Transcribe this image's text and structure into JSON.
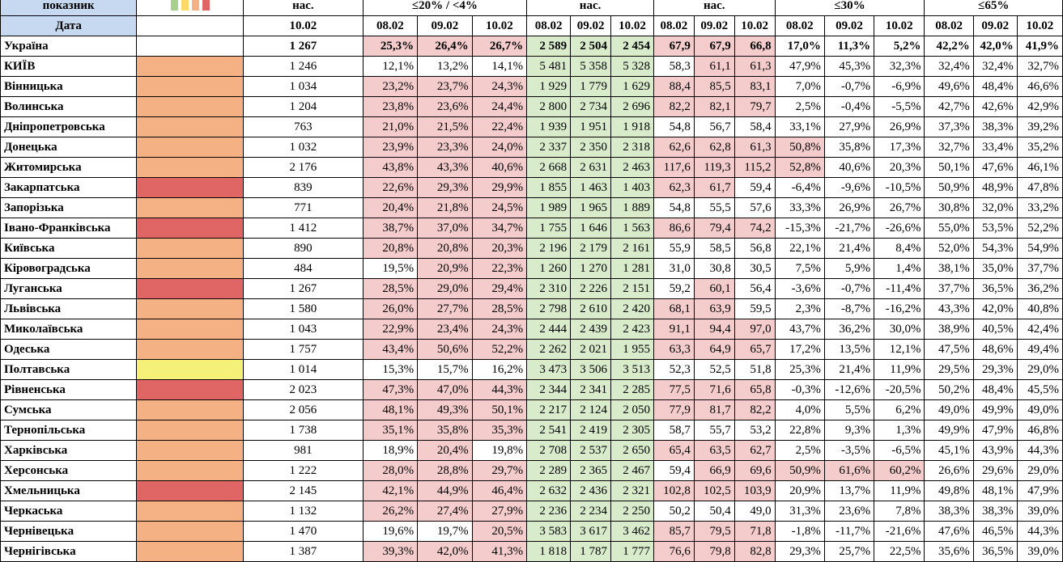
{
  "header": {
    "row1": {
      "label": "показник",
      "naselennya": "нас.",
      "group_positive_rate": "≤20% / <4%",
      "group_tests": "нас.",
      "group_hosp": "нас.",
      "group_change": "≤30%",
      "group_vacc": "≤65%"
    },
    "row2": {
      "label": "Дата",
      "date_single": "10.02",
      "d1": "08.02",
      "d2": "09.02",
      "d3": "10.02"
    },
    "legend_colors": [
      "#a9d18e",
      "#ffd966",
      "#f4b183",
      "#e06666"
    ]
  },
  "colors": {
    "orange": "#f4b183",
    "red": "#e06666",
    "yellow": "#f5f078",
    "pink_bg": "#f4cccc",
    "green_bg": "#d8eccc"
  },
  "rows": [
    {
      "name": "Україна",
      "zone": "",
      "pop": "1 267",
      "pr": [
        "25,3%",
        "26,4%",
        "26,7%"
      ],
      "t": [
        "2 589",
        "2 504",
        "2 454"
      ],
      "h": [
        "67,9",
        "67,9",
        "66,8"
      ],
      "ch": [
        "17,0%",
        "11,3%",
        "5,2%"
      ],
      "v": [
        "42,2%",
        "42,0%",
        "41,9%"
      ]
    },
    {
      "name": "КИЇВ",
      "zone": "orange",
      "pop": "1 246",
      "pr": [
        "12,1%",
        "13,2%",
        "14,1%"
      ],
      "t": [
        "5 481",
        "5 358",
        "5 328"
      ],
      "h": [
        "58,3",
        "61,1",
        "61,3"
      ],
      "ch": [
        "47,9%",
        "45,3%",
        "32,3%"
      ],
      "v": [
        "32,4%",
        "32,4%",
        "32,7%"
      ]
    },
    {
      "name": "Вінницька",
      "zone": "orange",
      "pop": "1 034",
      "pr": [
        "23,2%",
        "23,7%",
        "24,3%"
      ],
      "t": [
        "1 929",
        "1 779",
        "1 629"
      ],
      "h": [
        "88,4",
        "85,5",
        "83,1"
      ],
      "ch": [
        "7,0%",
        "-0,7%",
        "-6,9%"
      ],
      "v": [
        "49,6%",
        "48,4%",
        "46,6%"
      ]
    },
    {
      "name": "Волинська",
      "zone": "orange",
      "pop": "1 204",
      "pr": [
        "23,8%",
        "23,6%",
        "24,4%"
      ],
      "t": [
        "2 800",
        "2 734",
        "2 696"
      ],
      "h": [
        "82,2",
        "82,1",
        "79,7"
      ],
      "ch": [
        "2,5%",
        "-0,4%",
        "-5,5%"
      ],
      "v": [
        "42,7%",
        "42,6%",
        "42,9%"
      ]
    },
    {
      "name": "Дніпропетровська",
      "zone": "orange",
      "pop": "763",
      "pr": [
        "21,0%",
        "21,5%",
        "22,4%"
      ],
      "t": [
        "1 939",
        "1 951",
        "1 918"
      ],
      "h": [
        "54,8",
        "56,7",
        "58,4"
      ],
      "ch": [
        "33,1%",
        "27,9%",
        "26,9%"
      ],
      "v": [
        "37,3%",
        "38,3%",
        "39,2%"
      ]
    },
    {
      "name": "Донецька",
      "zone": "orange",
      "pop": "1 032",
      "pr": [
        "23,9%",
        "23,3%",
        "24,0%"
      ],
      "t": [
        "2 337",
        "2 350",
        "2 318"
      ],
      "h": [
        "62,6",
        "62,8",
        "61,3"
      ],
      "ch": [
        "50,8%",
        "35,8%",
        "17,3%"
      ],
      "v": [
        "32,7%",
        "33,4%",
        "35,2%"
      ]
    },
    {
      "name": "Житомирська",
      "zone": "orange",
      "pop": "2 176",
      "pr": [
        "43,8%",
        "43,3%",
        "40,6%"
      ],
      "t": [
        "2 668",
        "2 631",
        "2 463"
      ],
      "h": [
        "117,6",
        "119,3",
        "115,2"
      ],
      "ch": [
        "52,8%",
        "40,6%",
        "20,3%"
      ],
      "v": [
        "50,1%",
        "47,6%",
        "46,1%"
      ]
    },
    {
      "name": "Закарпатська",
      "zone": "red",
      "pop": "839",
      "pr": [
        "22,6%",
        "29,3%",
        "29,9%"
      ],
      "t": [
        "1 855",
        "1 463",
        "1 403"
      ],
      "h": [
        "62,3",
        "61,7",
        "59,4"
      ],
      "ch": [
        "-6,4%",
        "-9,6%",
        "-10,5%"
      ],
      "v": [
        "50,9%",
        "48,9%",
        "47,8%"
      ]
    },
    {
      "name": "Запорізька",
      "zone": "orange",
      "pop": "771",
      "pr": [
        "20,4%",
        "21,8%",
        "24,5%"
      ],
      "t": [
        "1 989",
        "1 965",
        "1 889"
      ],
      "h": [
        "54,8",
        "55,5",
        "57,6"
      ],
      "ch": [
        "33,3%",
        "26,9%",
        "26,7%"
      ],
      "v": [
        "30,8%",
        "32,0%",
        "33,2%"
      ]
    },
    {
      "name": "Івано-Франківська",
      "zone": "red",
      "pop": "1 412",
      "pr": [
        "38,7%",
        "37,0%",
        "34,7%"
      ],
      "t": [
        "1 755",
        "1 646",
        "1 563"
      ],
      "h": [
        "86,6",
        "79,4",
        "74,2"
      ],
      "ch": [
        "-15,3%",
        "-21,7%",
        "-26,6%"
      ],
      "v": [
        "55,0%",
        "53,5%",
        "52,2%"
      ]
    },
    {
      "name": "Київська",
      "zone": "orange",
      "pop": "890",
      "pr": [
        "20,8%",
        "20,8%",
        "20,3%"
      ],
      "t": [
        "2 196",
        "2 179",
        "2 161"
      ],
      "h": [
        "55,9",
        "58,5",
        "56,8"
      ],
      "ch": [
        "22,1%",
        "21,4%",
        "8,4%"
      ],
      "v": [
        "52,0%",
        "54,3%",
        "54,9%"
      ]
    },
    {
      "name": "Кіровоградська",
      "zone": "orange",
      "pop": "484",
      "pr": [
        "19,5%",
        "20,9%",
        "22,3%"
      ],
      "t": [
        "1 260",
        "1 270",
        "1 281"
      ],
      "h": [
        "31,0",
        "30,8",
        "30,5"
      ],
      "ch": [
        "7,5%",
        "5,9%",
        "1,4%"
      ],
      "v": [
        "38,1%",
        "35,0%",
        "37,7%"
      ]
    },
    {
      "name": "Луганська",
      "zone": "red",
      "pop": "1 267",
      "pr": [
        "28,5%",
        "29,0%",
        "29,4%"
      ],
      "t": [
        "2 310",
        "2 226",
        "2 151"
      ],
      "h": [
        "59,2",
        "60,1",
        "56,4"
      ],
      "ch": [
        "-3,6%",
        "-0,7%",
        "-11,4%"
      ],
      "v": [
        "37,7%",
        "36,5%",
        "36,2%"
      ]
    },
    {
      "name": "Львівська",
      "zone": "orange",
      "pop": "1 580",
      "pr": [
        "26,0%",
        "27,7%",
        "28,5%"
      ],
      "t": [
        "2 798",
        "2 610",
        "2 420"
      ],
      "h": [
        "68,1",
        "63,9",
        "59,5"
      ],
      "ch": [
        "2,3%",
        "-8,7%",
        "-16,2%"
      ],
      "v": [
        "43,3%",
        "42,0%",
        "40,8%"
      ]
    },
    {
      "name": "Миколаївська",
      "zone": "orange",
      "pop": "1 043",
      "pr": [
        "22,9%",
        "23,4%",
        "24,3%"
      ],
      "t": [
        "2 444",
        "2 439",
        "2 423"
      ],
      "h": [
        "91,1",
        "94,4",
        "97,0"
      ],
      "ch": [
        "43,7%",
        "36,2%",
        "30,0%"
      ],
      "v": [
        "38,9%",
        "40,5%",
        "42,4%"
      ]
    },
    {
      "name": "Одеська",
      "zone": "orange",
      "pop": "1 757",
      "pr": [
        "43,4%",
        "50,6%",
        "52,2%"
      ],
      "t": [
        "2 262",
        "2 021",
        "1 955"
      ],
      "h": [
        "63,3",
        "64,9",
        "65,7"
      ],
      "ch": [
        "17,2%",
        "13,5%",
        "12,1%"
      ],
      "v": [
        "47,5%",
        "48,6%",
        "49,4%"
      ]
    },
    {
      "name": "Полтавська",
      "zone": "yellow",
      "pop": "1 014",
      "pr": [
        "15,3%",
        "15,7%",
        "16,2%"
      ],
      "t": [
        "3 473",
        "3 506",
        "3 513"
      ],
      "h": [
        "52,3",
        "52,5",
        "51,8"
      ],
      "ch": [
        "25,3%",
        "21,4%",
        "11,9%"
      ],
      "v": [
        "29,5%",
        "29,3%",
        "29,0%"
      ]
    },
    {
      "name": "Рівненська",
      "zone": "red",
      "pop": "2 023",
      "pr": [
        "47,3%",
        "47,0%",
        "44,3%"
      ],
      "t": [
        "2 344",
        "2 341",
        "2 285"
      ],
      "h": [
        "77,5",
        "71,6",
        "65,8"
      ],
      "ch": [
        "-0,3%",
        "-12,6%",
        "-20,5%"
      ],
      "v": [
        "50,2%",
        "48,4%",
        "45,5%"
      ]
    },
    {
      "name": "Сумська",
      "zone": "orange",
      "pop": "2 056",
      "pr": [
        "48,1%",
        "49,3%",
        "50,1%"
      ],
      "t": [
        "2 217",
        "2 124",
        "2 050"
      ],
      "h": [
        "77,9",
        "81,7",
        "82,2"
      ],
      "ch": [
        "4,0%",
        "5,5%",
        "6,2%"
      ],
      "v": [
        "49,0%",
        "49,9%",
        "49,0%"
      ]
    },
    {
      "name": "Тернопільська",
      "zone": "orange",
      "pop": "1 738",
      "pr": [
        "35,1%",
        "35,8%",
        "35,3%"
      ],
      "t": [
        "2 541",
        "2 419",
        "2 305"
      ],
      "h": [
        "58,7",
        "55,7",
        "53,2"
      ],
      "ch": [
        "22,8%",
        "9,3%",
        "1,3%"
      ],
      "v": [
        "49,9%",
        "47,9%",
        "46,8%"
      ]
    },
    {
      "name": "Харківська",
      "zone": "orange",
      "pop": "981",
      "pr": [
        "18,9%",
        "20,4%",
        "19,8%"
      ],
      "t": [
        "2 708",
        "2 537",
        "2 650"
      ],
      "h": [
        "65,4",
        "63,5",
        "62,7"
      ],
      "ch": [
        "2,5%",
        "-3,5%",
        "-6,5%"
      ],
      "v": [
        "45,1%",
        "43,9%",
        "44,3%"
      ]
    },
    {
      "name": "Херсонська",
      "zone": "orange",
      "pop": "1 222",
      "pr": [
        "28,0%",
        "28,8%",
        "29,7%"
      ],
      "t": [
        "2 289",
        "2 365",
        "2 467"
      ],
      "h": [
        "59,4",
        "66,9",
        "69,6"
      ],
      "ch": [
        "50,9%",
        "61,6%",
        "60,2%"
      ],
      "v": [
        "26,6%",
        "29,6%",
        "29,0%"
      ]
    },
    {
      "name": "Хмельницька",
      "zone": "red",
      "pop": "2 145",
      "pr": [
        "42,1%",
        "44,9%",
        "46,4%"
      ],
      "t": [
        "2 632",
        "2 436",
        "2 321"
      ],
      "h": [
        "102,8",
        "102,5",
        "103,9"
      ],
      "ch": [
        "20,9%",
        "13,7%",
        "11,9%"
      ],
      "v": [
        "49,8%",
        "48,1%",
        "47,9%"
      ]
    },
    {
      "name": "Черкаська",
      "zone": "orange",
      "pop": "1 132",
      "pr": [
        "26,2%",
        "27,4%",
        "27,9%"
      ],
      "t": [
        "2 236",
        "2 234",
        "2 250"
      ],
      "h": [
        "50,2",
        "50,4",
        "49,0"
      ],
      "ch": [
        "31,3%",
        "23,6%",
        "7,8%"
      ],
      "v": [
        "38,3%",
        "38,3%",
        "39,0%"
      ]
    },
    {
      "name": "Чернівецька",
      "zone": "orange",
      "pop": "1 470",
      "pr": [
        "19,6%",
        "19,7%",
        "20,5%"
      ],
      "t": [
        "3 583",
        "3 617",
        "3 462"
      ],
      "h": [
        "85,7",
        "79,5",
        "71,8"
      ],
      "ch": [
        "-1,8%",
        "-11,7%",
        "-21,6%"
      ],
      "v": [
        "47,6%",
        "46,5%",
        "44,3%"
      ]
    },
    {
      "name": "Чернігівська",
      "zone": "orange",
      "pop": "1 387",
      "pr": [
        "39,3%",
        "42,0%",
        "41,3%"
      ],
      "t": [
        "1 818",
        "1 787",
        "1 777"
      ],
      "h": [
        "76,6",
        "79,8",
        "82,8"
      ],
      "ch": [
        "29,3%",
        "25,7%",
        "22,5%"
      ],
      "v": [
        "35,6%",
        "36,5%",
        "39,0%"
      ]
    }
  ]
}
